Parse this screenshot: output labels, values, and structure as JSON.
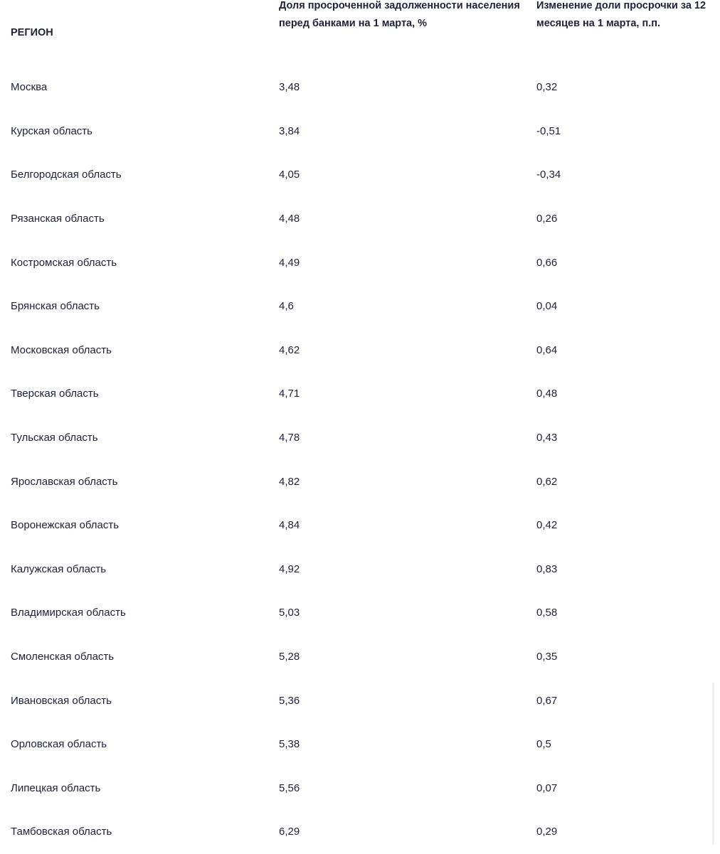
{
  "table": {
    "headers": [
      "РЕГИОН",
      "Доля просроченной задолженности населения перед банками на 1 марта, %",
      "Изменение доли просрочки за 12 месяцев на 1 марта, п.п."
    ],
    "rows": [
      [
        "Москва",
        "3,48",
        "0,32"
      ],
      [
        "Курская область",
        "3,84",
        "-0,51"
      ],
      [
        "Белгородская область",
        "4,05",
        "-0,34"
      ],
      [
        "Рязанская область",
        "4,48",
        "0,26"
      ],
      [
        "Костромская область",
        "4,49",
        "0,66"
      ],
      [
        "Брянская область",
        "4,6",
        "0,04"
      ],
      [
        "Московская область",
        "4,62",
        "0,64"
      ],
      [
        "Тверская область",
        "4,71",
        "0,48"
      ],
      [
        "Тульская область",
        "4,78",
        "0,43"
      ],
      [
        "Ярославская область",
        "4,82",
        "0,62"
      ],
      [
        "Воронежская область",
        "4,84",
        "0,42"
      ],
      [
        "Калужская область",
        "4,92",
        "0,83"
      ],
      [
        "Владимирская область",
        "5,03",
        "0,58"
      ],
      [
        "Смоленская область",
        "5,28",
        "0,35"
      ],
      [
        "Ивановская область",
        "5,36",
        "0,67"
      ],
      [
        "Орловская область",
        "5,38",
        "0,5"
      ],
      [
        "Липецкая область",
        "5,56",
        "0,07"
      ],
      [
        "Тамбовская область",
        "6,29",
        "0,29"
      ]
    ]
  },
  "colors": {
    "text": "#22223a",
    "background": "#ffffff"
  }
}
